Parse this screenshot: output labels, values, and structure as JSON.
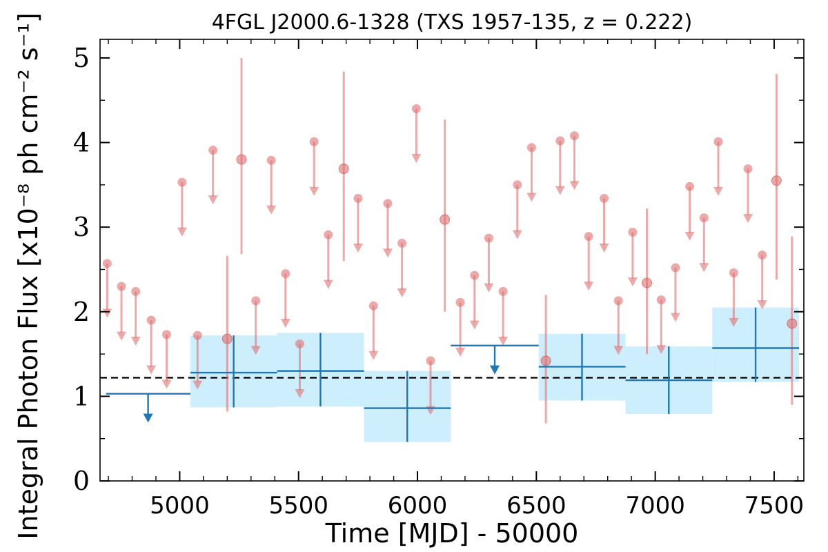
{
  "chart_data": {
    "type": "scatter",
    "title": "4FGL J2000.6-1328 (TXS 1957-135, z = 0.222)",
    "xlabel": "Time [MJD] - 50000",
    "ylabel": "Integral Photon Flux [x10⁻⁸ ph cm⁻² s⁻¹]",
    "xlim": [
      4665,
      7625
    ],
    "ylim": [
      0,
      5.22
    ],
    "xticks": [
      5000,
      5500,
      6000,
      6500,
      7000,
      7500
    ],
    "yticks": [
      0,
      1,
      2,
      3,
      4,
      5
    ],
    "xtick_labels": [
      "5000",
      "5500",
      "6000",
      "6500",
      "7000",
      "7500"
    ],
    "ytick_labels": [
      "0",
      "1",
      "2",
      "3",
      "4",
      "5"
    ],
    "mean_flux": 1.22,
    "colors": {
      "short_bins": "#e07070",
      "long_bins": "#1f77b4",
      "long_band": "#cdeefc",
      "mean_line": "#000000"
    },
    "series": [
      {
        "kind": "short-bin-points",
        "points": [
          {
            "x": 5200,
            "y": 1.68,
            "ylo": 0.82,
            "yhi": 2.66
          },
          {
            "x": 5260,
            "y": 3.8,
            "ylo": 2.68,
            "yhi": 5.0
          },
          {
            "x": 5690,
            "y": 3.69,
            "ylo": 2.6,
            "yhi": 4.84
          },
          {
            "x": 6115,
            "y": 3.09,
            "ylo": 2.0,
            "yhi": 4.27
          },
          {
            "x": 6540,
            "y": 1.42,
            "ylo": 0.68,
            "yhi": 2.2
          },
          {
            "x": 6965,
            "y": 2.34,
            "ylo": 1.5,
            "yhi": 3.22
          },
          {
            "x": 7510,
            "y": 3.55,
            "ylo": 2.38,
            "yhi": 4.81
          },
          {
            "x": 7575,
            "y": 1.86,
            "ylo": 0.9,
            "yhi": 2.89
          }
        ]
      },
      {
        "kind": "short-bin-upper-limits",
        "points": [
          {
            "x": 4695,
            "y": 2.57
          },
          {
            "x": 4755,
            "y": 2.3
          },
          {
            "x": 4815,
            "y": 2.24
          },
          {
            "x": 4880,
            "y": 1.9
          },
          {
            "x": 4945,
            "y": 1.73
          },
          {
            "x": 5010,
            "y": 3.53
          },
          {
            "x": 5075,
            "y": 1.72
          },
          {
            "x": 5140,
            "y": 3.91
          },
          {
            "x": 5320,
            "y": 2.13
          },
          {
            "x": 5385,
            "y": 3.79
          },
          {
            "x": 5445,
            "y": 2.45
          },
          {
            "x": 5505,
            "y": 1.62
          },
          {
            "x": 5565,
            "y": 4.01
          },
          {
            "x": 5625,
            "y": 2.91
          },
          {
            "x": 5750,
            "y": 3.34
          },
          {
            "x": 5815,
            "y": 2.07
          },
          {
            "x": 5875,
            "y": 3.28
          },
          {
            "x": 5935,
            "y": 2.81
          },
          {
            "x": 5995,
            "y": 4.4
          },
          {
            "x": 6055,
            "y": 1.42
          },
          {
            "x": 6180,
            "y": 2.11
          },
          {
            "x": 6240,
            "y": 2.43
          },
          {
            "x": 6300,
            "y": 2.87
          },
          {
            "x": 6360,
            "y": 2.24
          },
          {
            "x": 6420,
            "y": 3.5
          },
          {
            "x": 6480,
            "y": 3.94
          },
          {
            "x": 6600,
            "y": 4.02
          },
          {
            "x": 6660,
            "y": 4.08
          },
          {
            "x": 6720,
            "y": 2.89
          },
          {
            "x": 6785,
            "y": 3.34
          },
          {
            "x": 6845,
            "y": 2.13
          },
          {
            "x": 6905,
            "y": 2.94
          },
          {
            "x": 7025,
            "y": 2.14
          },
          {
            "x": 7085,
            "y": 2.52
          },
          {
            "x": 7145,
            "y": 3.48
          },
          {
            "x": 7205,
            "y": 3.11
          },
          {
            "x": 7265,
            "y": 4.01
          },
          {
            "x": 7330,
            "y": 2.46
          },
          {
            "x": 7390,
            "y": 3.69
          },
          {
            "x": 7450,
            "y": 2.67
          }
        ]
      },
      {
        "kind": "long-bin-points",
        "bins": [
          {
            "x0": 5045,
            "x1": 5410,
            "xc": 5227,
            "y": 1.28,
            "ylo": 0.87,
            "yhi": 1.72
          },
          {
            "x0": 5410,
            "x1": 5775,
            "xc": 5592,
            "y": 1.3,
            "ylo": 0.88,
            "yhi": 1.75
          },
          {
            "x0": 5775,
            "x1": 6140,
            "xc": 5957,
            "y": 0.86,
            "ylo": 0.46,
            "yhi": 1.3
          },
          {
            "x0": 6510,
            "x1": 6875,
            "xc": 6692,
            "y": 1.35,
            "ylo": 0.95,
            "yhi": 1.74
          },
          {
            "x0": 6875,
            "x1": 7240,
            "xc": 7057,
            "y": 1.19,
            "ylo": 0.79,
            "yhi": 1.59
          },
          {
            "x0": 7240,
            "x1": 7605,
            "xc": 7422,
            "y": 1.57,
            "ylo": 1.17,
            "yhi": 2.05
          }
        ]
      },
      {
        "kind": "long-bin-upper-limits",
        "bins": [
          {
            "x0": 4690,
            "x1": 5045,
            "xc": 4867,
            "y": 1.03
          },
          {
            "x0": 6140,
            "x1": 6510,
            "xc": 6325,
            "y": 1.6
          }
        ]
      }
    ]
  }
}
